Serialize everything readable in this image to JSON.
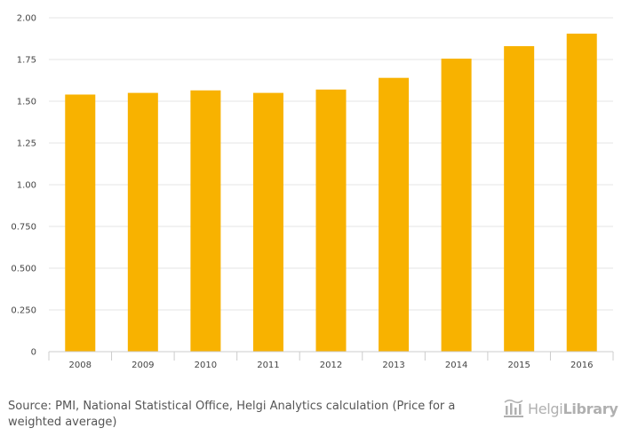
{
  "chart_data": {
    "type": "bar",
    "categories": [
      "2008",
      "2009",
      "2010",
      "2011",
      "2012",
      "2013",
      "2014",
      "2015",
      "2016"
    ],
    "values": [
      1.54,
      1.55,
      1.565,
      1.55,
      1.57,
      1.64,
      1.755,
      1.83,
      1.905
    ],
    "ylim": [
      0,
      2.0
    ],
    "yticks": [
      0,
      0.25,
      0.5,
      0.75,
      1.0,
      1.25,
      1.5,
      1.75,
      2.0
    ],
    "ytick_labels": [
      "0",
      "0.250",
      "0.500",
      "0.750",
      "1.00",
      "1.25",
      "1.50",
      "1.75",
      "2.00"
    ],
    "grid": true,
    "bar_color": "#f8b200",
    "grid_color": "#e6e6e6"
  },
  "footer": {
    "source": "Source: PMI, National Statistical Office, Helgi Analytics calculation (Price for a weighted average)",
    "brand_light": "Helgi",
    "brand_bold": "Library"
  }
}
